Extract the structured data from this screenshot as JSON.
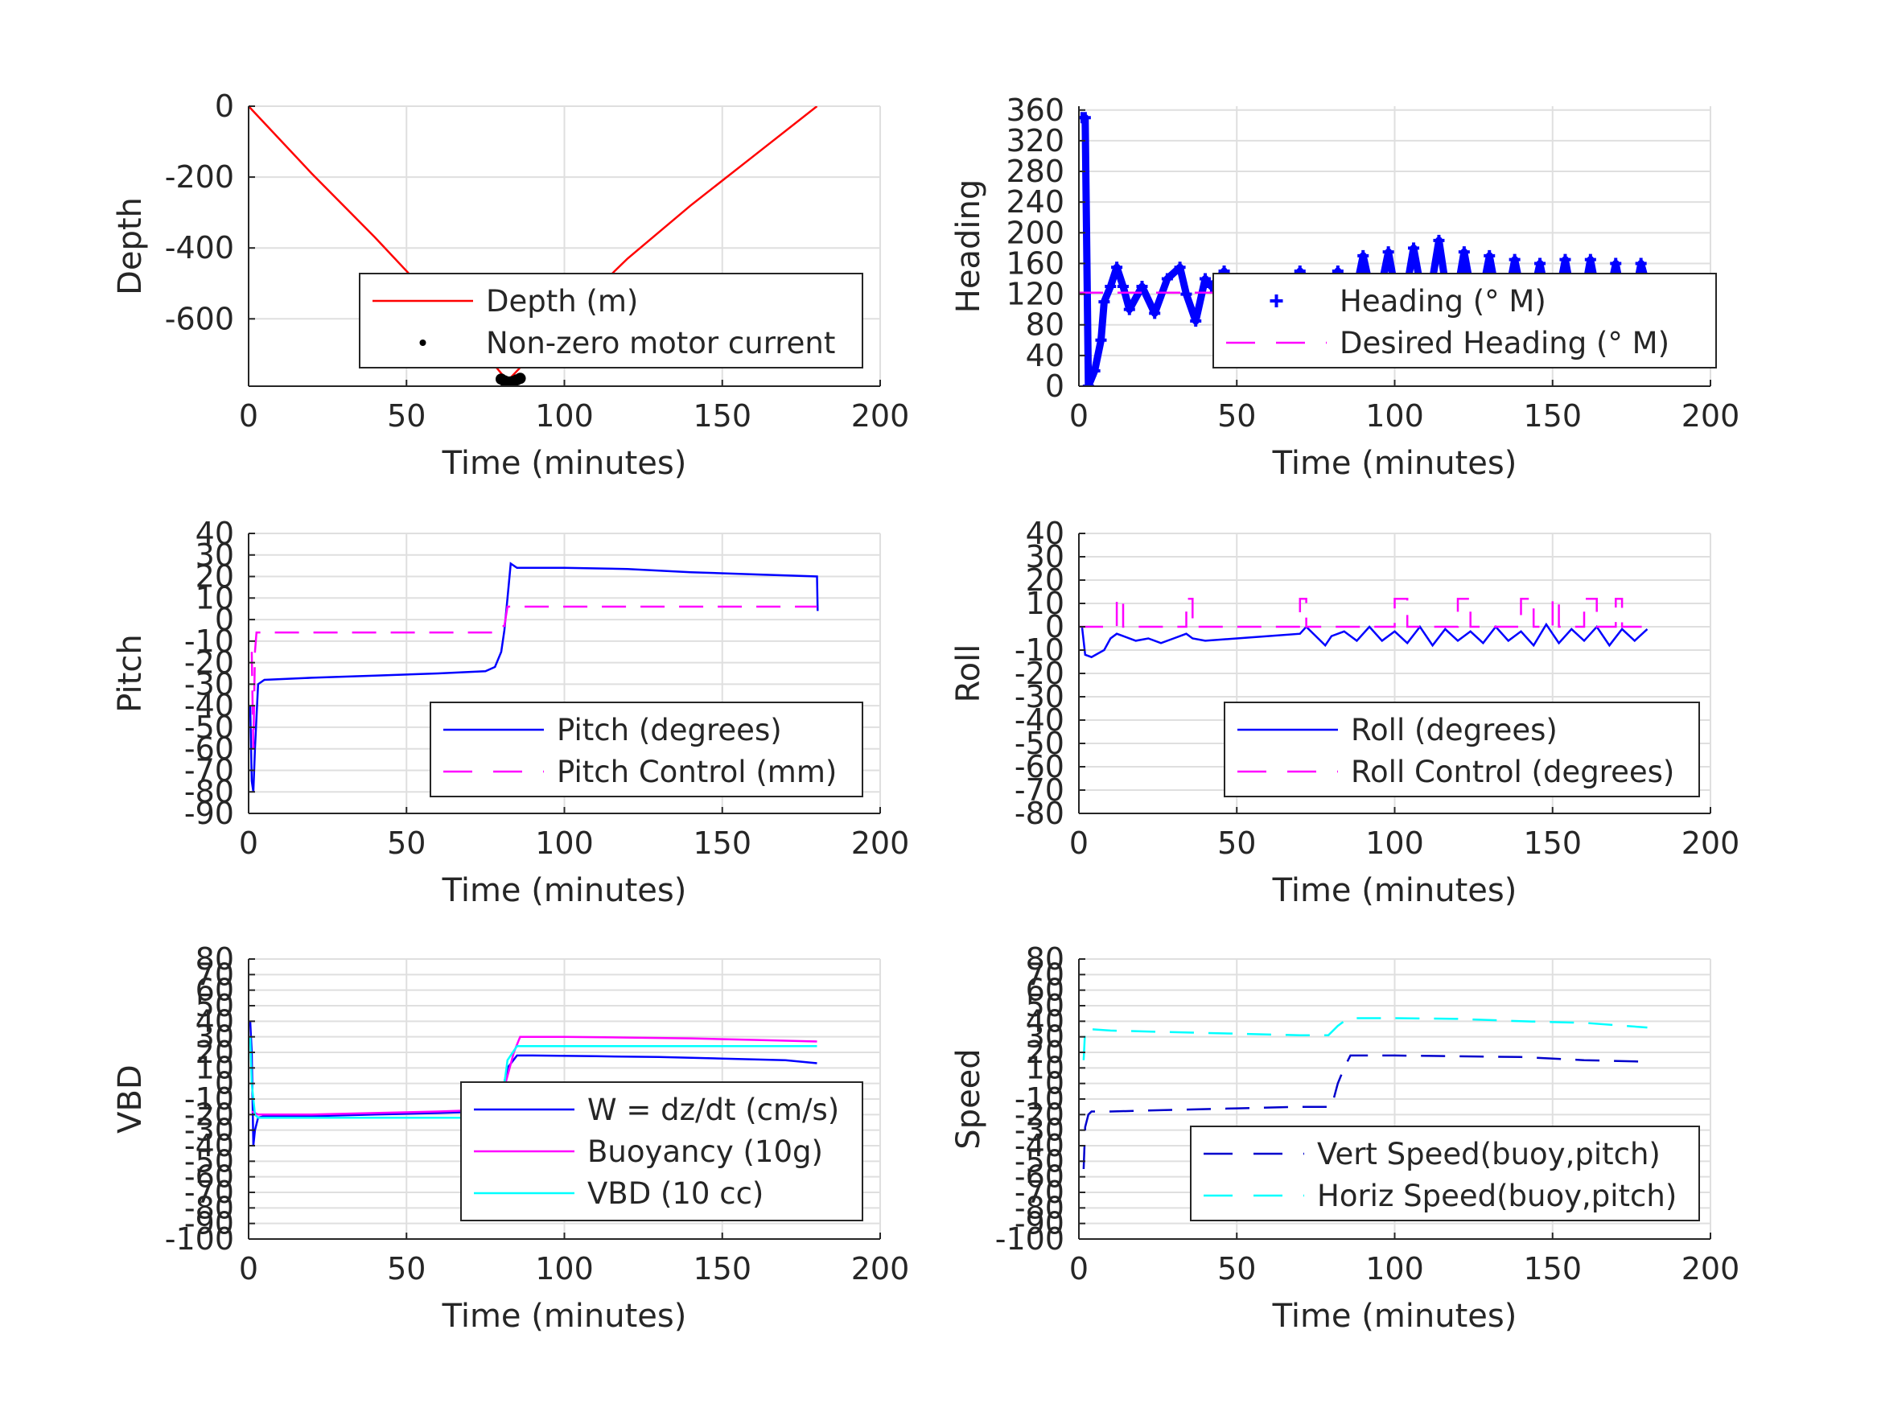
{
  "colors": {
    "red": "#ff0000",
    "blue": "#0000ff",
    "dark_blue": "#0000cc",
    "magenta": "#ff00ff",
    "cyan": "#00ffff",
    "black": "#000000",
    "grid": "#dfdfdf",
    "text": "#262626"
  },
  "chart_data": [
    {
      "id": "depth",
      "type": "line",
      "title": "",
      "xlabel": "Time (minutes)",
      "ylabel": "Depth",
      "xlim": [
        0,
        200
      ],
      "ylim": [
        -790,
        0
      ],
      "xticks": [
        0,
        50,
        100,
        150,
        200
      ],
      "yticks": [
        0,
        -200,
        -400,
        -600
      ],
      "legend": {
        "position": "bottom-right"
      },
      "grid": true,
      "series": [
        {
          "name": "Depth (m)",
          "color": "#ff0000",
          "style": "solid",
          "x": [
            0,
            20,
            40,
            60,
            75,
            82,
            90,
            105,
            120,
            140,
            160,
            180
          ],
          "y": [
            0,
            -190,
            -370,
            -560,
            -700,
            -775,
            -700,
            -560,
            -430,
            -280,
            -140,
            0
          ]
        },
        {
          "name": "Non-zero motor current",
          "color": "#000000",
          "style": "dots",
          "x": [
            80,
            81,
            82,
            83,
            84,
            85,
            86
          ],
          "y": [
            -770,
            -775,
            -778,
            -778,
            -776,
            -772,
            -768
          ]
        }
      ]
    },
    {
      "id": "heading",
      "type": "line",
      "title": "",
      "xlabel": "Time (minutes)",
      "ylabel": "Heading",
      "xlim": [
        0,
        200
      ],
      "ylim": [
        0,
        365
      ],
      "xticks": [
        0,
        50,
        100,
        150,
        200
      ],
      "yticks": [
        0,
        40,
        80,
        120,
        160,
        200,
        240,
        280,
        320,
        360
      ],
      "legend": {
        "position": "bottom-right"
      },
      "grid": true,
      "series": [
        {
          "name": "Heading (° M)",
          "color": "#0000ff",
          "style": "marker",
          "x": [
            1,
            2,
            3,
            5,
            7,
            8,
            10,
            12,
            14,
            16,
            20,
            24,
            28,
            32,
            34,
            37,
            40,
            42,
            46,
            50,
            55,
            60,
            65,
            70,
            74,
            78,
            82,
            86,
            90,
            94,
            98,
            102,
            106,
            110,
            114,
            118,
            122,
            126,
            130,
            134,
            138,
            142,
            146,
            150,
            154,
            158,
            162,
            166,
            170,
            174,
            178,
            180
          ],
          "y": [
            350,
            350,
            0,
            20,
            60,
            110,
            130,
            155,
            130,
            100,
            130,
            95,
            140,
            155,
            120,
            85,
            140,
            130,
            150,
            120,
            90,
            140,
            100,
            150,
            130,
            95,
            150,
            90,
            170,
            95,
            175,
            85,
            180,
            90,
            190,
            80,
            175,
            85,
            170,
            80,
            165,
            85,
            160,
            80,
            165,
            75,
            165,
            80,
            160,
            75,
            160,
            130
          ]
        },
        {
          "name": "Desired Heading (° M)",
          "color": "#ff00ff",
          "style": "dashed",
          "x": [
            0,
            180
          ],
          "y": [
            122,
            122
          ]
        }
      ]
    },
    {
      "id": "pitch",
      "type": "line",
      "title": "",
      "xlabel": "Time (minutes)",
      "ylabel": "Pitch",
      "xlim": [
        0,
        200
      ],
      "ylim": [
        -90,
        40
      ],
      "xticks": [
        0,
        50,
        100,
        150,
        200
      ],
      "yticks": [
        40,
        30,
        20,
        10,
        0,
        -10,
        -20,
        -30,
        -40,
        -50,
        -60,
        -70,
        -80,
        -90
      ],
      "legend": {
        "position": "bottom-right"
      },
      "grid": true,
      "series": [
        {
          "name": "Pitch (degrees)",
          "color": "#0000ff",
          "style": "solid",
          "x": [
            0.5,
            1,
            1.5,
            2,
            3,
            5,
            20,
            40,
            60,
            75,
            78,
            80,
            81,
            82,
            83,
            85,
            100,
            120,
            140,
            160,
            180,
            180.2
          ],
          "y": [
            -40,
            -75,
            -80,
            -60,
            -30,
            -28,
            -27,
            -26,
            -25,
            -24,
            -22,
            -15,
            -5,
            10,
            26,
            24,
            24,
            23.5,
            22,
            21,
            20,
            4
          ]
        },
        {
          "name": "Pitch Control (mm)",
          "color": "#ff00ff",
          "style": "dashed",
          "x": [
            1,
            1.5,
            2,
            2.5,
            79,
            80,
            81,
            82,
            180
          ],
          "y": [
            -15,
            -60,
            -15,
            -6,
            -6,
            -3,
            -3,
            6,
            6
          ]
        }
      ]
    },
    {
      "id": "roll",
      "type": "line",
      "title": "",
      "xlabel": "Time (minutes)",
      "ylabel": "Roll",
      "xlim": [
        0,
        200
      ],
      "ylim": [
        -80,
        40
      ],
      "xticks": [
        0,
        50,
        100,
        150,
        200
      ],
      "yticks": [
        40,
        30,
        20,
        10,
        0,
        -10,
        -20,
        -30,
        -40,
        -50,
        -60,
        -70,
        -80
      ],
      "legend": {
        "position": "bottom-right"
      },
      "grid": true,
      "series": [
        {
          "name": "Roll (degrees)",
          "color": "#0000ff",
          "style": "solid",
          "x": [
            1,
            2,
            4,
            8,
            10,
            12,
            14,
            18,
            22,
            26,
            30,
            34,
            36,
            40,
            50,
            60,
            70,
            72,
            78,
            80,
            84,
            88,
            92,
            96,
            100,
            104,
            108,
            112,
            116,
            120,
            124,
            128,
            132,
            136,
            140,
            144,
            148,
            152,
            156,
            160,
            164,
            168,
            172,
            176,
            180
          ],
          "y": [
            0,
            -12,
            -13,
            -10,
            -5,
            -3,
            -4,
            -6,
            -5,
            -7,
            -5,
            -3,
            -5,
            -6,
            -5,
            -4,
            -3,
            0,
            -8,
            -4,
            -2,
            -6,
            0,
            -6,
            -2,
            -7,
            0,
            -8,
            -1,
            -6,
            -2,
            -7,
            0,
            -6,
            -2,
            -8,
            1,
            -7,
            -1,
            -6,
            0,
            -8,
            -1,
            -6,
            -1
          ]
        },
        {
          "name": "Roll Control (degrees)",
          "color": "#ff00ff",
          "style": "dashed",
          "x": [
            0,
            12,
            12,
            14,
            14,
            34,
            34,
            36,
            36,
            70,
            70,
            72,
            72,
            100,
            100,
            104,
            104,
            120,
            120,
            124,
            124,
            140,
            140,
            144,
            144,
            150,
            150,
            152,
            152,
            160,
            160,
            164,
            164,
            170,
            170,
            172,
            172,
            180
          ],
          "y": [
            0,
            0,
            12,
            12,
            0,
            0,
            12,
            12,
            0,
            0,
            12,
            12,
            0,
            0,
            12,
            12,
            0,
            0,
            12,
            12,
            0,
            0,
            12,
            12,
            0,
            0,
            12,
            12,
            0,
            0,
            12,
            12,
            0,
            0,
            12,
            12,
            0,
            0
          ]
        }
      ]
    },
    {
      "id": "vbd",
      "type": "line",
      "title": "",
      "xlabel": "Time (minutes)",
      "ylabel": "VBD",
      "xlim": [
        0,
        200
      ],
      "ylim": [
        -100,
        80
      ],
      "xticks": [
        0,
        50,
        100,
        150,
        200
      ],
      "yticks": [
        80,
        70,
        60,
        50,
        40,
        30,
        20,
        10,
        0,
        -10,
        -20,
        -30,
        -40,
        -50,
        -60,
        -70,
        -80,
        -90,
        -100
      ],
      "legend": {
        "position": "bottom-right"
      },
      "grid": true,
      "series": [
        {
          "name": "W = dz/dt (cm/s)",
          "color": "#0000ff",
          "style": "solid",
          "x": [
            0.5,
            1,
            1.5,
            2,
            3,
            5,
            20,
            40,
            60,
            75,
            78,
            80,
            82,
            85,
            90,
            110,
            130,
            150,
            170,
            180
          ],
          "y": [
            40,
            20,
            -40,
            -30,
            -22,
            -21,
            -21,
            -20,
            -19,
            -18,
            -17,
            -8,
            10,
            18,
            18,
            17.5,
            17,
            16,
            15,
            13
          ]
        },
        {
          "name": "Buoyancy (10g)",
          "color": "#ff00ff",
          "style": "solid",
          "x": [
            1,
            3,
            20,
            40,
            60,
            75,
            78,
            80,
            84,
            86,
            100,
            120,
            140,
            160,
            180
          ],
          "y": [
            -18,
            -20,
            -20,
            -19,
            -18,
            -17,
            -16,
            -10,
            20,
            30,
            30,
            29.5,
            29,
            28,
            27
          ]
        },
        {
          "name": "VBD (10 cc)",
          "color": "#00ffff",
          "style": "solid",
          "x": [
            0.5,
            1,
            2,
            3,
            79,
            80,
            82,
            85,
            180
          ],
          "y": [
            30,
            0,
            -20,
            -22,
            -22,
            -15,
            15,
            24,
            24
          ]
        }
      ]
    },
    {
      "id": "speed",
      "type": "line",
      "title": "",
      "xlabel": "Time (minutes)",
      "ylabel": "Speed",
      "xlim": [
        0,
        200
      ],
      "ylim": [
        -100,
        80
      ],
      "xticks": [
        0,
        50,
        100,
        150,
        200
      ],
      "yticks": [
        80,
        70,
        60,
        50,
        40,
        30,
        20,
        10,
        0,
        -10,
        -20,
        -30,
        -40,
        -50,
        -60,
        -70,
        -80,
        -90,
        -100
      ],
      "legend": {
        "position": "bottom-right"
      },
      "grid": true,
      "series": [
        {
          "name": "Vert Speed(buoy,pitch)",
          "color": "#0000cc",
          "style": "dashed",
          "x": [
            1.5,
            2,
            3,
            4,
            10,
            30,
            50,
            70,
            80,
            82,
            84,
            86,
            100,
            120,
            140,
            160,
            180
          ],
          "y": [
            -55,
            -28,
            -20,
            -18,
            -18,
            -17,
            -16,
            -15,
            -15,
            0,
            10,
            18,
            18,
            17.5,
            17,
            15,
            14
          ]
        },
        {
          "name": "Horiz Speed(buoy,pitch)",
          "color": "#00ffff",
          "style": "dashed",
          "x": [
            1.5,
            2,
            3,
            10,
            30,
            50,
            70,
            79,
            82,
            84,
            86,
            100,
            120,
            140,
            160,
            180
          ],
          "y": [
            15,
            35,
            35,
            34,
            33,
            32,
            31,
            31,
            37,
            40,
            42,
            42,
            41.5,
            40,
            39,
            36
          ]
        }
      ]
    }
  ]
}
